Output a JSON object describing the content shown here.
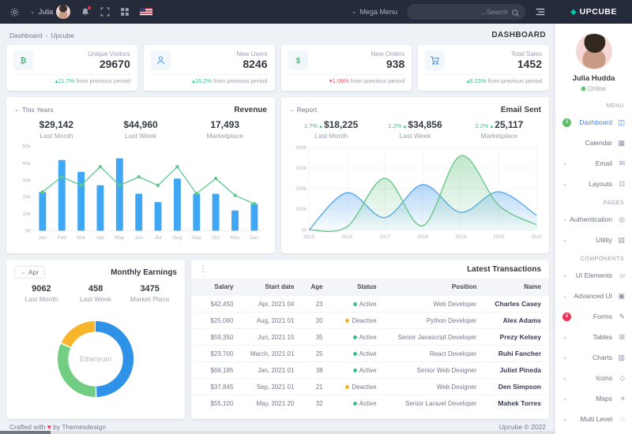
{
  "topbar": {
    "user_name": "Julia",
    "mega_menu_label": "Mega Menu",
    "search_placeholder": "...Search",
    "logo_text": "UPCUBE",
    "logo_glyph": "◆"
  },
  "breadcrumb": {
    "item1": "Dashboard",
    "separator": "‹",
    "item2": "Upcube",
    "page_title": "DASHBOARD"
  },
  "stat_cards": [
    {
      "label": "Unique Visitors",
      "value": "29670",
      "delta": "11.7%",
      "dir": "up",
      "note": "from previous period",
      "icon": "bitcoin-icon"
    },
    {
      "label": "New Users",
      "value": "8246",
      "delta": "16.2%",
      "dir": "up",
      "note": "from previous period",
      "icon": "user-icon"
    },
    {
      "label": "New Orders",
      "value": "938",
      "delta": "1.09%",
      "dir": "down",
      "note": "from previous period",
      "icon": "dollar-icon"
    },
    {
      "label": "Total Sales",
      "value": "1452",
      "delta": "9.23%",
      "dir": "up",
      "note": "from previous period",
      "icon": "cart-icon"
    }
  ],
  "revenue": {
    "dropdown": "This Years",
    "title": "Revenue",
    "stats": [
      {
        "value": "$29,142",
        "label": "Last Month"
      },
      {
        "value": "$44,960",
        "label": "Last Week"
      },
      {
        "value": "17,493",
        "label": "Marketplace"
      }
    ],
    "chart": {
      "type": "bar+line",
      "categories": [
        "Jan",
        "Feb",
        "Mar",
        "Apr",
        "May",
        "Jun",
        "Jul",
        "Aug",
        "Sep",
        "Oct",
        "Nov",
        "Dec"
      ],
      "bars": {
        "name": "Revenue",
        "values": [
          23,
          42,
          35,
          27,
          43,
          22,
          17,
          31,
          22,
          22,
          12,
          16
        ],
        "color": "#3fa7f3"
      },
      "line": {
        "name": "Trend",
        "values": [
          23,
          32,
          27,
          38,
          27,
          32,
          27,
          38,
          22,
          31,
          21,
          16
        ],
        "color": "#5bc98c"
      },
      "ymax": 50,
      "yticks": [
        0,
        10,
        20,
        30,
        40,
        50
      ],
      "ytick_suffix": "k"
    }
  },
  "email_sent": {
    "dropdown": "Report",
    "title": "Email Sent",
    "stats": [
      {
        "pct": "1.7% ▴",
        "value": "$18,225",
        "label": "Last Month"
      },
      {
        "pct": "1.2% ▴",
        "value": "$34,856",
        "label": "Last Week"
      },
      {
        "pct": "2.2% ▴",
        "value": "25,117",
        "label": "Marketplace"
      }
    ],
    "chart": {
      "type": "area",
      "x": [
        "2015",
        "2016",
        "2017",
        "2018",
        "2019",
        "2020",
        "2021"
      ],
      "series": [
        {
          "name": "blue",
          "values": [
            0,
            180,
            60,
            220,
            85,
            185,
            70
          ],
          "color": "#55a5f0"
        },
        {
          "name": "green",
          "values": [
            0,
            15,
            250,
            20,
            360,
            120,
            25
          ],
          "color": "#67c584"
        }
      ],
      "ymax": 400,
      "yticks": [
        0,
        100,
        200,
        300,
        400
      ],
      "ytick_suffix": "k"
    }
  },
  "monthly_earnings": {
    "dropdown": "Apr",
    "title": "Monthly Earnings",
    "stats": [
      {
        "value": "9062",
        "label": "Last Month"
      },
      {
        "value": "458",
        "label": "Last Week"
      },
      {
        "value": "3475",
        "label": "Market Place"
      }
    ],
    "chart": {
      "type": "pie",
      "center_label": "Ethereum",
      "segments": [
        {
          "name": "segment-1",
          "value": 50,
          "color": "#2e93e8"
        },
        {
          "name": "segment-2",
          "value": 32,
          "color": "#72ce82"
        },
        {
          "name": "segment-3",
          "value": 18,
          "color": "#f7b52c"
        }
      ]
    }
  },
  "transactions": {
    "title": "Latest Transactions",
    "kebab_glyph": "⋮",
    "columns": [
      "Salary",
      "Start date",
      "Age",
      "Status",
      "Position",
      "Name"
    ],
    "status_colors": {
      "Active": "#34c38f",
      "Deactive": "#f5b225"
    },
    "rows": [
      {
        "salary": "$42,450",
        "date": "Apr, 2021 04",
        "age": "23",
        "status": "Active",
        "position": "Web Developer",
        "name": "Charles Casey"
      },
      {
        "salary": "$25,060",
        "date": "Aug, 2021 01",
        "age": "20",
        "status": "Deactive",
        "position": "Python Developer",
        "name": "Alex Adams"
      },
      {
        "salary": "$59,350",
        "date": "Jun, 2021 15",
        "age": "35",
        "status": "Active",
        "position": "Senior Javascript Developer",
        "name": "Prezy Kelsey"
      },
      {
        "salary": "$23,700",
        "date": "March, 2021 01",
        "age": "25",
        "status": "Active",
        "position": "React Developer",
        "name": "Ruhi Fancher"
      },
      {
        "salary": "$69,185",
        "date": "Jan, 2021 01",
        "age": "38",
        "status": "Active",
        "position": "Senior Web Designer",
        "name": "Juliet Pineda"
      },
      {
        "salary": "$37,845",
        "date": "Sep, 2021 01",
        "age": "21",
        "status": "Deactive",
        "position": "Web Designer",
        "name": "Den Simpson"
      },
      {
        "salary": "$55,100",
        "date": "May, 2021 20",
        "age": "32",
        "status": "Active",
        "position": "Senior Laravel Developer",
        "name": "Mahek Torres"
      }
    ]
  },
  "sidebar": {
    "profile_name": "Julia Hudda",
    "online_label": "Online",
    "menu": [
      {
        "type": "label",
        "label": "MENU"
      },
      {
        "type": "item",
        "id": "dashboard",
        "label": "Dashboard",
        "glyph": "◫",
        "active": true,
        "badge": "3",
        "badge_color": "#5fbe67"
      },
      {
        "type": "item",
        "id": "calendar",
        "label": "Calendar",
        "glyph": "▦"
      },
      {
        "type": "item",
        "id": "email",
        "label": "Email",
        "glyph": "✉",
        "caret": true
      },
      {
        "type": "item",
        "id": "layouts",
        "label": "Layouts",
        "glyph": "⊡",
        "caret": true
      },
      {
        "type": "label",
        "label": "PAGES"
      },
      {
        "type": "item",
        "id": "authentication",
        "label": "Authentication",
        "glyph": "◎",
        "caret": true
      },
      {
        "type": "item",
        "id": "utility",
        "label": "Utility",
        "glyph": "▤",
        "caret": true
      },
      {
        "type": "label",
        "label": "COMPONENTS"
      },
      {
        "type": "item",
        "id": "ui-elements",
        "label": "UI Elements",
        "glyph": "▱",
        "caret": true
      },
      {
        "type": "item",
        "id": "advanced-ui",
        "label": "Advanced UI",
        "glyph": "▣",
        "caret": true
      },
      {
        "type": "item",
        "id": "forms",
        "label": "Forms",
        "glyph": "✎",
        "badge": "8",
        "badge_color": "#f32f53"
      },
      {
        "type": "item",
        "id": "tables",
        "label": "Tables",
        "glyph": "⊞",
        "caret": true
      },
      {
        "type": "item",
        "id": "charts",
        "label": "Charts",
        "glyph": "▥",
        "caret": true
      },
      {
        "type": "item",
        "id": "icons",
        "label": "Icons",
        "glyph": "◇",
        "caret": true
      },
      {
        "type": "item",
        "id": "maps",
        "label": "Maps",
        "glyph": "⌖",
        "caret": true
      },
      {
        "type": "item",
        "id": "multi-level",
        "label": "Multi Level",
        "glyph": "∴",
        "caret": true
      }
    ]
  },
  "footer": {
    "left_prefix": "Crafted with",
    "heart": "♥",
    "left_suffix": "by Themesdesign",
    "right": "Upcube © 2022"
  }
}
